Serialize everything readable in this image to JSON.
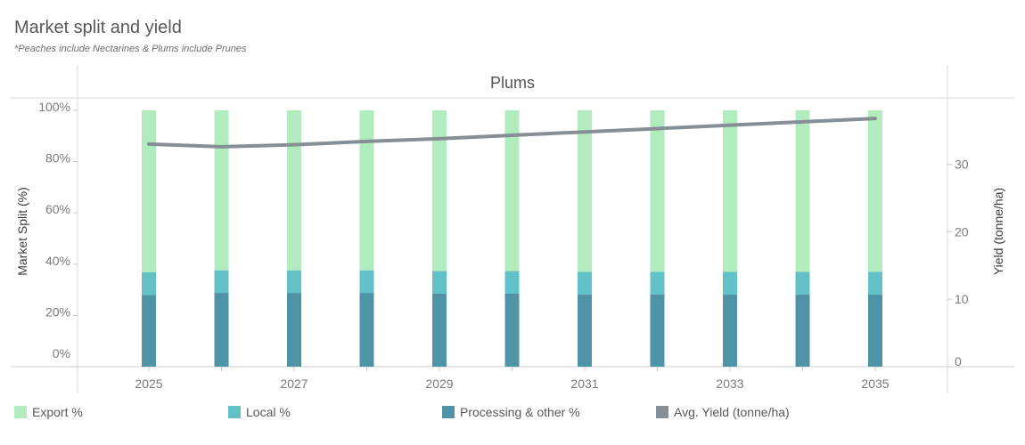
{
  "title": "Market split and yield",
  "subtitle": "*Peaches include Nectarines & Plums include Prunes",
  "chart_data": {
    "type": "bar",
    "stacked": true,
    "panel_title": "Plums",
    "x": [
      2025,
      2026,
      2027,
      2028,
      2029,
      2030,
      2031,
      2032,
      2033,
      2034,
      2035
    ],
    "x_tick_labels": [
      "2025",
      "2027",
      "2029",
      "2031",
      "2033",
      "2035"
    ],
    "ylabel": "Market Split (%)",
    "ylim": [
      0,
      100
    ],
    "y_tick_labels": [
      "0%",
      "20%",
      "40%",
      "60%",
      "80%",
      "100%"
    ],
    "y2label": "Yield (tonne/ha)",
    "y2lim": [
      0,
      38
    ],
    "y2_ticks": [
      0,
      10,
      20,
      30
    ],
    "y2_tick_labels": [
      "0",
      "10",
      "20",
      "30"
    ],
    "series": [
      {
        "name": "Processing & other %",
        "axis": "left",
        "kind": "bar",
        "color": "#4f93a7",
        "values": [
          28.0,
          28.8,
          28.8,
          28.8,
          28.5,
          28.5,
          28.2,
          28.2,
          28.2,
          28.2,
          28.2
        ]
      },
      {
        "name": "Local %",
        "axis": "left",
        "kind": "bar",
        "color": "#62c1c6",
        "values": [
          8.8,
          8.8,
          8.8,
          8.8,
          8.8,
          8.8,
          8.8,
          8.8,
          8.8,
          8.8,
          8.8
        ]
      },
      {
        "name": "Export %",
        "axis": "left",
        "kind": "bar",
        "color": "#b0ecbd",
        "values": [
          63.2,
          62.4,
          62.4,
          62.4,
          62.7,
          62.7,
          63.0,
          63.0,
          63.0,
          63.0,
          63.0
        ]
      },
      {
        "name": "Avg. Yield (tonne/ha)",
        "axis": "right",
        "kind": "line",
        "color": "#868e96",
        "values": [
          33.0,
          32.6,
          32.9,
          33.4,
          33.8,
          34.3,
          34.8,
          35.3,
          35.8,
          36.3,
          36.8
        ]
      }
    ],
    "legend": [
      {
        "label": "Export %",
        "color": "#b0ecbd"
      },
      {
        "label": "Local %",
        "color": "#62c1c6"
      },
      {
        "label": "Processing & other %",
        "color": "#4f93a7"
      },
      {
        "label": "Avg. Yield (tonne/ha)",
        "color": "#868e96"
      }
    ],
    "legend_position": "bottom"
  }
}
